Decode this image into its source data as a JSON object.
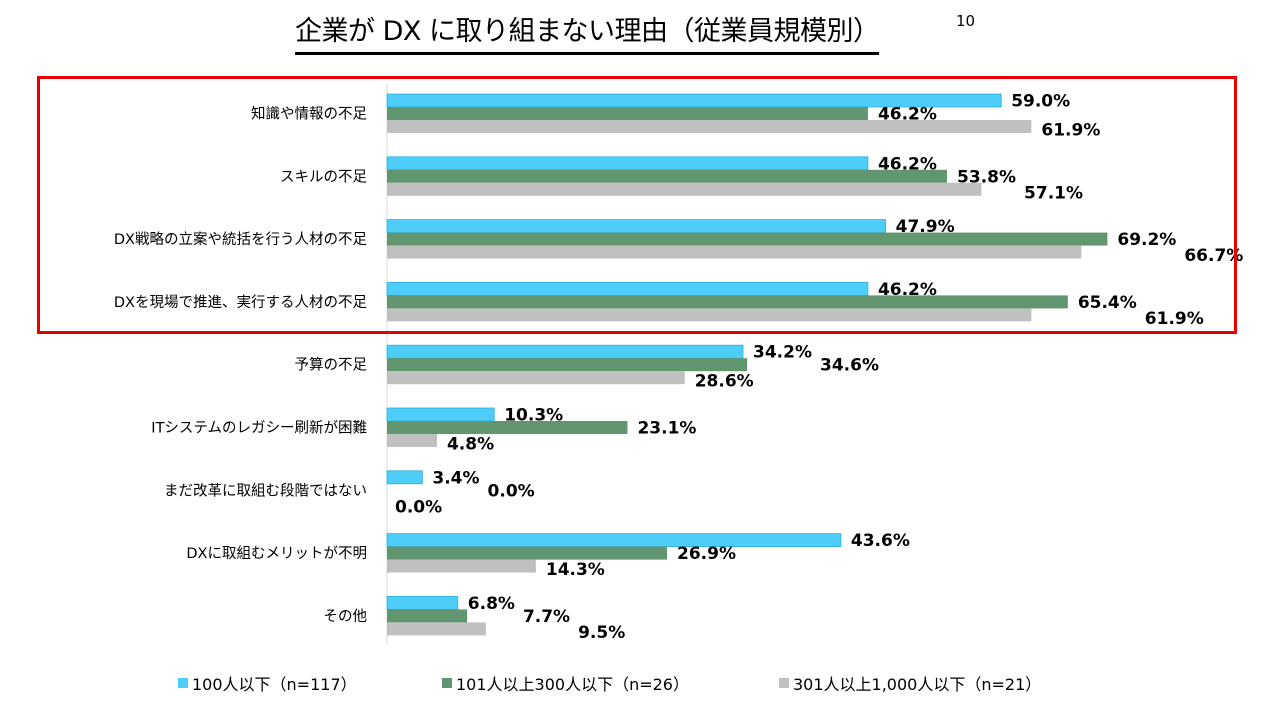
{
  "title": "企業が DX に取り組まない理由（従業員規模別）",
  "title_note": "10",
  "chart_data": {
    "type": "bar",
    "orientation": "horizontal",
    "title": "企業が DX に取り組まない理由（従業員規模別）",
    "xlim": [
      0,
      100
    ],
    "unit": "%",
    "categories": [
      "知識や情報の不足",
      "スキルの不足",
      "DX戦略の立案や統括を行う人材の不足",
      "DXを現場で推進、実行する人材の不足",
      "予算の不足",
      "ITシステムのレガシー刷新が困難",
      "まだ改革に取組む段階ではない",
      "DXに取組むメリットが不明",
      "その他"
    ],
    "series": [
      {
        "name": "100人以下（n=117）",
        "color": "#4dcdf7",
        "values": [
          59.0,
          46.2,
          47.9,
          46.2,
          34.2,
          10.3,
          3.4,
          43.6,
          6.8
        ]
      },
      {
        "name": "101人以上300人以下（n=26）",
        "color": "#629670",
        "values": [
          46.2,
          53.8,
          69.2,
          65.4,
          34.6,
          23.1,
          0.0,
          26.9,
          7.7
        ]
      },
      {
        "name": "301人以上1,000人以下（n=21）",
        "color": "#c0c0c0",
        "values": [
          61.9,
          57.1,
          66.7,
          61.9,
          28.6,
          4.8,
          0.0,
          14.3,
          9.5
        ]
      }
    ],
    "highlighted_categories": 4,
    "legend_position": "bottom"
  }
}
